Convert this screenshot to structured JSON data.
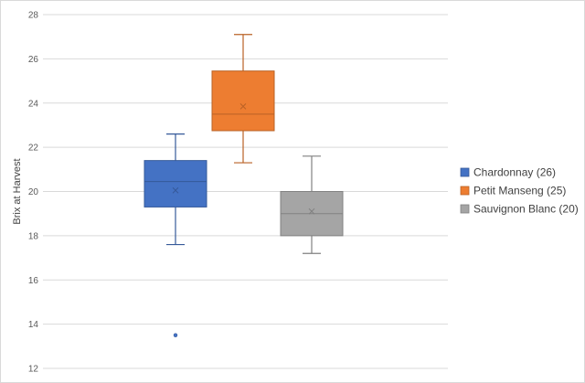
{
  "chart_data": {
    "type": "box",
    "title": "",
    "ylabel": "Brix at Harvest",
    "ylim": [
      12,
      28
    ],
    "yticks": [
      12,
      14,
      16,
      18,
      20,
      22,
      24,
      26,
      28
    ],
    "grid": true,
    "legend_position": "right",
    "series": [
      {
        "name": "Chardonnay (26)",
        "color": "#4472c4",
        "min": 17.6,
        "q1": 19.3,
        "median": 20.45,
        "q3": 21.4,
        "max": 22.6,
        "mean": 20.05,
        "outliers": [
          13.5
        ]
      },
      {
        "name": "Petit Manseng (25)",
        "color": "#ed7d31",
        "min": 21.3,
        "q1": 22.75,
        "median": 23.5,
        "q3": 25.45,
        "max": 27.1,
        "mean": 23.85,
        "outliers": []
      },
      {
        "name": "Sauvignon Blanc (20)",
        "color": "#a5a5a5",
        "min": 17.2,
        "q1": 18.0,
        "median": 19.0,
        "q3": 20.0,
        "max": 21.6,
        "mean": 19.1,
        "outliers": []
      }
    ]
  }
}
